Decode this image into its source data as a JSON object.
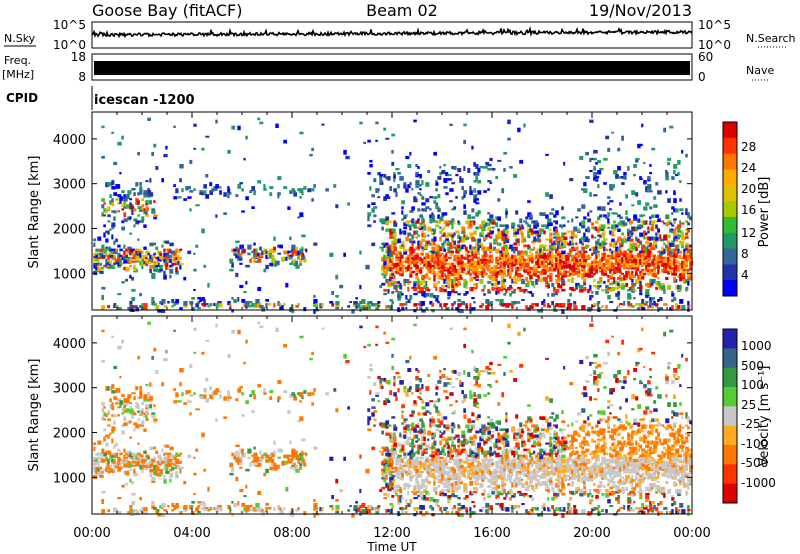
{
  "header": {
    "station": "Goose Bay (fitACF)",
    "beam": "Beam 02",
    "date": "19/Nov/2013"
  },
  "strips": {
    "nsky_label": "N.Sky",
    "nsky_ticks": [
      "10^5",
      "10^0"
    ],
    "nsearch_label": "N.Search",
    "nsearch_ticks": [
      "10^5",
      "10^0"
    ],
    "freq_label_line1": "Freq.",
    "freq_label_line2": "[MHz]",
    "freq_ticks": [
      "18",
      "8"
    ],
    "nave_label": "Nave",
    "nave_ticks": [
      "60",
      "0"
    ],
    "cpid_label": "CPID",
    "cpid_value": "icescan -1200"
  },
  "chart_data": [
    {
      "type": "heatmap",
      "ylabel": "Slant Range [km]",
      "yticks": [
        "4000",
        "3000",
        "2000",
        "1000"
      ],
      "ytick_values": [
        4000,
        3000,
        2000,
        1000
      ],
      "ylim": [
        180,
        4600
      ],
      "xlim": [
        0,
        24
      ],
      "xtick_values": [
        0,
        4,
        8,
        12,
        16,
        20,
        24
      ],
      "colorbar": {
        "label": "Power [dB]",
        "ticks": [
          "28",
          "24",
          "20",
          "16",
          "12",
          "8",
          "4"
        ],
        "colors": [
          "#dd0000",
          "#ff3300",
          "#ff7700",
          "#ffaa00",
          "#e0c000",
          "#a8c800",
          "#33bb33",
          "#229966",
          "#336699",
          "#2233aa",
          "#0000ff"
        ]
      }
    },
    {
      "type": "heatmap",
      "ylabel": "Slant Range [km]",
      "yticks": [
        "4000",
        "3000",
        "2000",
        "1000"
      ],
      "ytick_values": [
        4000,
        3000,
        2000,
        1000
      ],
      "ylim": [
        180,
        4600
      ],
      "xlim": [
        0,
        24
      ],
      "xtick_values": [
        0,
        4,
        8,
        12,
        16,
        20,
        24
      ],
      "xlabel": "Time UT",
      "xticks": [
        "00:00",
        "04:00",
        "08:00",
        "12:00",
        "16:00",
        "20:00",
        "00:00"
      ],
      "colorbar": {
        "label": "Velocity [m s⁻¹]",
        "ticks": [
          "1000",
          "500",
          "100",
          "25",
          "-25",
          "-100",
          "-500",
          "-1000"
        ],
        "colors": [
          "#2222aa",
          "#336688",
          "#339944",
          "#55cc33",
          "#c8c8c8",
          "#ffaa22",
          "#ff7700",
          "#ff3300",
          "#dd0000"
        ]
      }
    }
  ]
}
